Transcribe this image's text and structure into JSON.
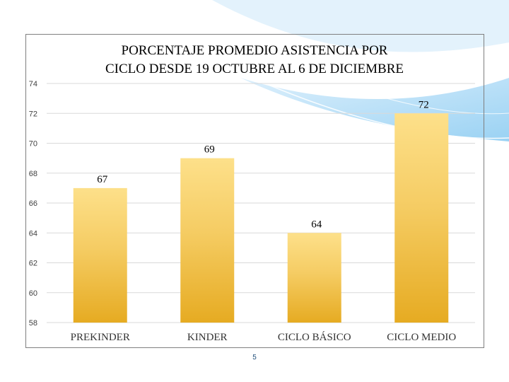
{
  "chart_data": {
    "type": "bar",
    "title_lines": [
      "PORCENTAJE PROMEDIO ASISTENCIA POR",
      "CICLO DESDE 19 OCTUBRE AL 6 DE DICIEMBRE"
    ],
    "categories": [
      "PREKINDER",
      "KINDER",
      "CICLO BÁSICO",
      "CICLO MEDIO"
    ],
    "values": [
      67,
      69,
      64,
      72
    ],
    "data_labels": [
      "67",
      "69",
      "64",
      "72"
    ],
    "yticks": [
      "58",
      "60",
      "62",
      "64",
      "66",
      "68",
      "70",
      "72",
      "74"
    ],
    "ylim": [
      58,
      74
    ],
    "grid": true,
    "legend": "none",
    "colors": {
      "bar_top": "#fde08a",
      "bar_bottom": "#e6ab22",
      "grid": "#d9d9d9",
      "frame": "#7f7f7f"
    }
  },
  "page": {
    "number": "5"
  }
}
